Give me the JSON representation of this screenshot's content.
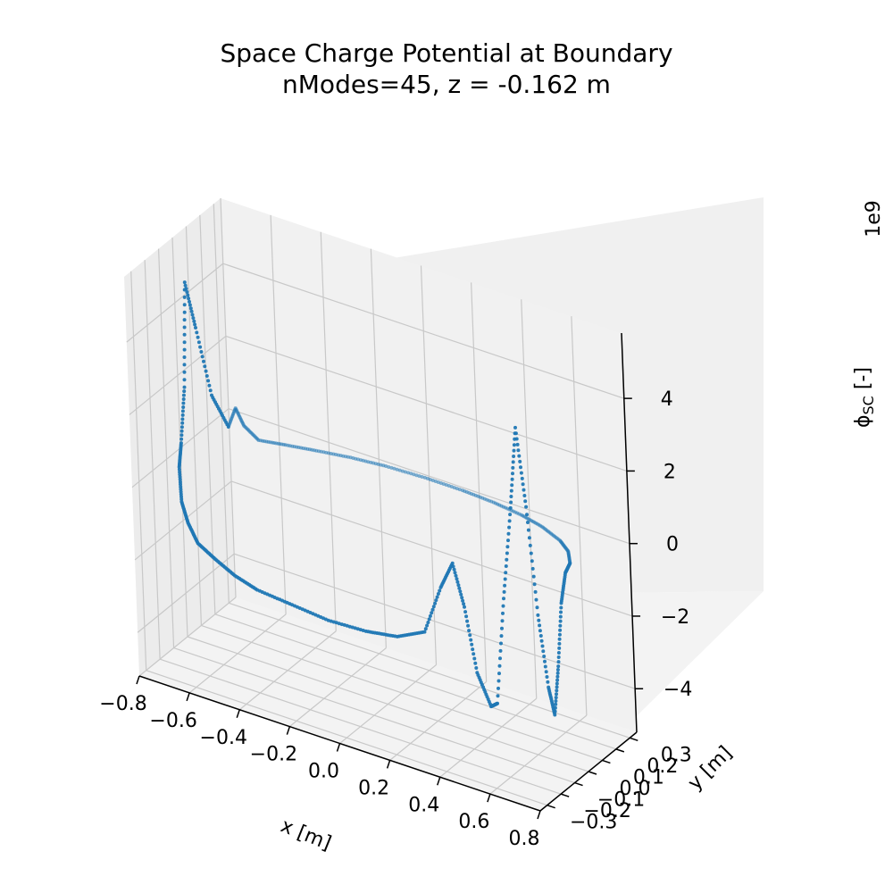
{
  "chart_data": {
    "type": "scatter",
    "title": "Space Charge Potential at Boundary",
    "subtitle": "nModes=45, z = -0.162 m",
    "xlabel": "x [m]",
    "ylabel": "y [m]",
    "zlabel": "ϕ",
    "zlabel_sub": "SC",
    "zlabel_suffix": " [-]",
    "z_multiplier": "1e9",
    "xlim": [
      -0.8,
      0.8
    ],
    "ylim": [
      -0.35,
      0.35
    ],
    "zlim": [
      -5.2,
      5.8
    ],
    "x_ticks": [
      "−0.8",
      "−0.6",
      "−0.4",
      "−0.2",
      "0.0",
      "0.2",
      "0.4",
      "0.6",
      "0.8"
    ],
    "x_tick_values": [
      -0.8,
      -0.6,
      -0.4,
      -0.2,
      0.0,
      0.2,
      0.4,
      0.6,
      0.8
    ],
    "y_ticks": [
      "−0.3",
      "−0.2",
      "−0.1",
      "0.0",
      "0.1",
      "0.2",
      "0.3"
    ],
    "y_tick_values": [
      -0.3,
      -0.2,
      -0.1,
      0.0,
      0.1,
      0.2,
      0.3
    ],
    "z_ticks": [
      "−4",
      "−2",
      "0",
      "2",
      "4"
    ],
    "z_tick_values": [
      -4,
      -2,
      0,
      2,
      4
    ],
    "grid": true,
    "series": [
      {
        "color": "#1f77b4",
        "marker_size": 2,
        "description_points": [
          [
            0.72,
            0.03,
            0.0
          ],
          [
            0.7,
            0.1,
            0.0
          ],
          [
            0.66,
            0.16,
            0.05
          ],
          [
            0.6,
            0.21,
            0.05
          ],
          [
            0.5,
            0.26,
            0.05
          ],
          [
            0.4,
            0.29,
            0.05
          ],
          [
            0.28,
            0.31,
            0.05
          ],
          [
            0.15,
            0.32,
            0.05
          ],
          [
            0.0,
            0.32,
            0.05
          ],
          [
            -0.15,
            0.31,
            0.05
          ],
          [
            -0.28,
            0.29,
            0.05
          ],
          [
            -0.4,
            0.26,
            0.05
          ],
          [
            -0.5,
            0.22,
            0.1
          ],
          [
            -0.58,
            0.17,
            0.2
          ],
          [
            -0.62,
            0.14,
            0.6
          ],
          [
            -0.64,
            0.12,
            1.1
          ],
          [
            -0.66,
            0.1,
            0.6
          ],
          [
            -0.7,
            0.06,
            1.5
          ],
          [
            -0.72,
            0.0,
            3.5
          ],
          [
            -0.74,
            -0.03,
            4.8
          ],
          [
            -0.74,
            -0.06,
            2.0
          ],
          [
            -0.75,
            -0.08,
            0.5
          ],
          [
            -0.75,
            -0.1,
            -0.1
          ],
          [
            -0.74,
            -0.11,
            -1.0
          ],
          [
            -0.7,
            -0.14,
            -1.4
          ],
          [
            -0.64,
            -0.18,
            -1.7
          ],
          [
            -0.55,
            -0.22,
            -1.8
          ],
          [
            -0.45,
            -0.26,
            -1.9
          ],
          [
            -0.35,
            -0.28,
            -2.0
          ],
          [
            -0.2,
            -0.3,
            -2.0
          ],
          [
            -0.05,
            -0.31,
            -2.05
          ],
          [
            0.1,
            -0.31,
            -2.0
          ],
          [
            0.22,
            -0.3,
            -1.9
          ],
          [
            0.32,
            -0.28,
            -1.6
          ],
          [
            0.38,
            -0.26,
            -0.3
          ],
          [
            0.42,
            -0.24,
            0.4
          ],
          [
            0.45,
            -0.22,
            -0.8
          ],
          [
            0.48,
            -0.2,
            -2.6
          ],
          [
            0.52,
            -0.18,
            -3.5
          ],
          [
            0.54,
            -0.17,
            -3.4
          ],
          [
            0.57,
            -0.15,
            -0.5
          ],
          [
            0.6,
            -0.13,
            2.0
          ],
          [
            0.62,
            -0.11,
            4.2
          ],
          [
            0.64,
            -0.09,
            2.0
          ],
          [
            0.66,
            -0.07,
            -1.0
          ],
          [
            0.68,
            -0.05,
            -3.0
          ],
          [
            0.69,
            -0.03,
            -3.8
          ],
          [
            0.7,
            -0.01,
            -2.5
          ],
          [
            0.71,
            0.01,
            -0.8
          ],
          [
            0.72,
            0.03,
            0.0
          ]
        ]
      }
    ]
  }
}
